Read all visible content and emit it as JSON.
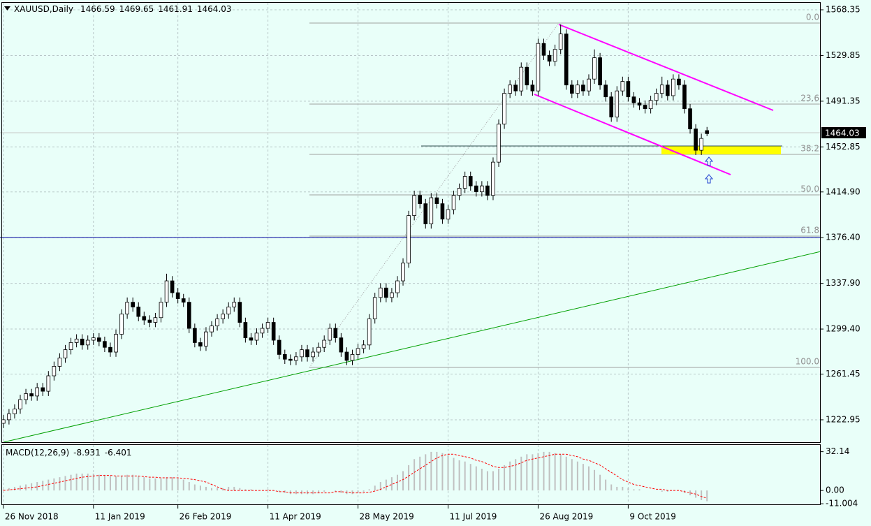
{
  "chart_data": [
    {
      "type": "candlestick",
      "title": "XAUUSD,Daily",
      "open": [
        1220,
        1223,
        1228,
        1232,
        1240,
        1245,
        1243,
        1250,
        1247,
        1260,
        1268,
        1275,
        1282,
        1288,
        1291,
        1286,
        1290,
        1292,
        1289,
        1284,
        1280,
        1295,
        1312,
        1322,
        1318,
        1310,
        1307,
        1305,
        1309,
        1322,
        1340,
        1330,
        1325,
        1322,
        1300,
        1288,
        1285,
        1297,
        1302,
        1308,
        1312,
        1318,
        1322,
        1305,
        1292,
        1290,
        1296,
        1300,
        1305,
        1290,
        1278,
        1274,
        1273,
        1276,
        1282,
        1276,
        1280,
        1284,
        1290,
        1300,
        1292,
        1280,
        1273,
        1278,
        1283,
        1286,
        1308,
        1326,
        1334,
        1326,
        1330,
        1340,
        1355,
        1395,
        1412,
        1405,
        1388,
        1410,
        1405,
        1392,
        1400,
        1412,
        1418,
        1428,
        1420,
        1415,
        1420,
        1412,
        1440,
        1472,
        1498,
        1505,
        1500,
        1520,
        1505,
        1500,
        1540,
        1530,
        1525,
        1535,
        1548,
        1505,
        1498,
        1505,
        1500,
        1510,
        1528,
        1505,
        1495,
        1478,
        1500,
        1508,
        1495,
        1490,
        1488,
        1485,
        1492,
        1498,
        1505,
        1496,
        1510,
        1505,
        1485,
        1468,
        1450,
        1466.59
      ],
      "high": [
        1227,
        1232,
        1236,
        1244,
        1249,
        1249,
        1254,
        1254,
        1264,
        1272,
        1279,
        1286,
        1292,
        1295,
        1295,
        1294,
        1296,
        1296,
        1293,
        1288,
        1299,
        1316,
        1326,
        1326,
        1322,
        1314,
        1311,
        1313,
        1326,
        1346,
        1344,
        1334,
        1329,
        1326,
        1304,
        1292,
        1301,
        1306,
        1312,
        1316,
        1322,
        1326,
        1326,
        1309,
        1296,
        1300,
        1304,
        1309,
        1309,
        1294,
        1282,
        1278,
        1280,
        1286,
        1286,
        1284,
        1288,
        1294,
        1304,
        1304,
        1296,
        1284,
        1282,
        1287,
        1290,
        1312,
        1330,
        1338,
        1338,
        1334,
        1344,
        1359,
        1399,
        1416,
        1416,
        1409,
        1414,
        1414,
        1409,
        1404,
        1416,
        1422,
        1432,
        1432,
        1424,
        1424,
        1424,
        1444,
        1476,
        1502,
        1509,
        1509,
        1524,
        1524,
        1509,
        1544,
        1544,
        1534,
        1539,
        1556,
        1552,
        1509,
        1509,
        1509,
        1514,
        1535,
        1532,
        1509,
        1499,
        1504,
        1512,
        1512,
        1499,
        1494,
        1492,
        1496,
        1502,
        1512,
        1509,
        1514,
        1514,
        1509,
        1489,
        1472,
        1464,
        1469.65
      ],
      "low": [
        1216,
        1219,
        1224,
        1228,
        1236,
        1239,
        1239,
        1243,
        1243,
        1256,
        1264,
        1271,
        1278,
        1284,
        1282,
        1282,
        1286,
        1285,
        1280,
        1276,
        1276,
        1291,
        1308,
        1314,
        1306,
        1303,
        1301,
        1301,
        1305,
        1318,
        1326,
        1321,
        1318,
        1296,
        1284,
        1281,
        1281,
        1293,
        1298,
        1304,
        1308,
        1314,
        1301,
        1288,
        1286,
        1286,
        1292,
        1296,
        1286,
        1274,
        1270,
        1269,
        1269,
        1272,
        1272,
        1272,
        1276,
        1280,
        1286,
        1288,
        1276,
        1269,
        1269,
        1274,
        1279,
        1282,
        1304,
        1322,
        1322,
        1322,
        1326,
        1336,
        1351,
        1391,
        1401,
        1384,
        1384,
        1401,
        1388,
        1388,
        1396,
        1408,
        1414,
        1416,
        1411,
        1411,
        1408,
        1408,
        1436,
        1468,
        1494,
        1496,
        1496,
        1501,
        1496,
        1496,
        1526,
        1521,
        1521,
        1531,
        1501,
        1494,
        1494,
        1496,
        1496,
        1506,
        1501,
        1491,
        1474,
        1474,
        1496,
        1491,
        1486,
        1484,
        1481,
        1481,
        1488,
        1494,
        1492,
        1492,
        1501,
        1481,
        1464,
        1446,
        1446,
        1461.91
      ],
      "close": [
        1223,
        1228,
        1232,
        1240,
        1245,
        1243,
        1250,
        1247,
        1260,
        1268,
        1275,
        1282,
        1288,
        1291,
        1286,
        1290,
        1292,
        1289,
        1284,
        1280,
        1295,
        1312,
        1322,
        1318,
        1310,
        1307,
        1305,
        1309,
        1322,
        1340,
        1330,
        1325,
        1322,
        1300,
        1288,
        1285,
        1297,
        1302,
        1308,
        1312,
        1318,
        1322,
        1305,
        1292,
        1290,
        1296,
        1300,
        1305,
        1290,
        1278,
        1274,
        1273,
        1276,
        1282,
        1276,
        1280,
        1284,
        1290,
        1300,
        1292,
        1280,
        1273,
        1278,
        1283,
        1286,
        1308,
        1326,
        1334,
        1326,
        1330,
        1340,
        1355,
        1395,
        1412,
        1405,
        1388,
        1410,
        1405,
        1392,
        1400,
        1412,
        1418,
        1428,
        1420,
        1415,
        1420,
        1412,
        1440,
        1472,
        1498,
        1505,
        1500,
        1520,
        1505,
        1500,
        1540,
        1530,
        1525,
        1535,
        1548,
        1505,
        1498,
        1505,
        1500,
        1510,
        1528,
        1505,
        1495,
        1478,
        1500,
        1508,
        1495,
        1490,
        1488,
        1485,
        1492,
        1498,
        1505,
        1496,
        1510,
        1505,
        1485,
        1468,
        1450,
        1460,
        1464.03
      ],
      "up_color": "#ffffff",
      "down_color": "#000000",
      "xlim": [
        -0.6,
        145.2
      ],
      "xticks": [
        {
          "value": 0,
          "label": "26 Nov 2018"
        },
        {
          "value": 16,
          "label": "11 Jan 2019"
        },
        {
          "value": 31,
          "label": "26 Feb 2019"
        },
        {
          "value": 47,
          "label": "11 Apr 2019"
        },
        {
          "value": 63,
          "label": "28 May 2019"
        },
        {
          "value": 79,
          "label": "11 Jul 2019"
        },
        {
          "value": 95,
          "label": "26 Aug 2019"
        },
        {
          "value": 111,
          "label": "9 Oct 2019"
        }
      ],
      "ylim": [
        1204.1,
        1576.6
      ],
      "yticks": [
        1568.35,
        1529.85,
        1491.35,
        1452.85,
        {
          "value": 1414.9,
          "label": "1414.90"
        },
        {
          "value": 1376.4,
          "label": "1376.40"
        },
        {
          "value": 1337.9,
          "label": "1337.90"
        },
        {
          "value": 1299.4,
          "label": "1299.40"
        },
        1261.45,
        1222.95
      ],
      "grid": true,
      "fib_levels": [
        "0.0",
        "23.6",
        "38.2",
        "50.0",
        "61.8",
        "100.0"
      ]
    },
    {
      "type": "macd",
      "title": "MACD(12,26,9)",
      "macd": [
        1,
        2,
        3,
        4,
        5,
        6,
        7,
        8,
        9,
        10,
        11,
        12,
        13,
        14,
        14,
        14,
        14,
        13,
        13,
        12,
        12,
        12,
        13,
        13,
        12,
        11,
        10,
        10,
        10,
        11,
        11,
        10,
        9,
        7,
        5,
        4,
        3,
        2,
        2,
        2,
        3,
        3,
        2,
        1,
        1,
        0,
        0,
        1,
        0,
        -1,
        -2,
        -3,
        -3,
        -3,
        -3,
        -3,
        -2,
        -1,
        0,
        -1,
        -2,
        -3,
        -3,
        -2,
        -1,
        1,
        4,
        7,
        9,
        11,
        13,
        16,
        21,
        26,
        28,
        30,
        32,
        32,
        31,
        29,
        27,
        25,
        24,
        22,
        20,
        18,
        16,
        16,
        18,
        21,
        24,
        26,
        28,
        30,
        30,
        31,
        32,
        32,
        31,
        30,
        28,
        26,
        24,
        22,
        20,
        17,
        13,
        9,
        5,
        3,
        3,
        2,
        1,
        1,
        0,
        0,
        0,
        -1,
        -1,
        0,
        0,
        -2,
        -4,
        -6,
        -8,
        -8.931
      ],
      "signal": [
        0,
        0.5,
        1,
        1.5,
        2,
        2.5,
        3,
        4,
        5,
        6,
        7,
        8,
        9,
        10,
        11,
        11.5,
        12,
        12.5,
        12.5,
        12.5,
        12,
        12,
        12,
        12,
        12,
        11.5,
        11,
        11,
        10.5,
        10.5,
        10.5,
        10.5,
        10,
        9.5,
        9,
        8,
        7,
        5,
        3,
        1,
        0,
        0,
        0,
        0,
        0,
        0,
        0,
        0,
        0,
        -1,
        -1,
        -2,
        -2,
        -2,
        -2,
        -2,
        -2,
        -2,
        -2,
        -1,
        -1,
        -1.5,
        -2,
        -2,
        -2,
        -1.5,
        -0.5,
        1,
        3,
        5,
        7,
        9,
        12,
        15,
        18,
        21,
        24,
        27,
        29,
        30,
        30,
        29,
        28,
        27,
        25,
        24,
        22,
        20,
        19,
        19,
        20,
        21,
        23,
        25,
        26,
        27,
        28,
        29,
        30,
        30,
        30,
        29,
        28,
        26,
        25,
        23,
        21,
        18,
        15,
        12,
        9,
        7,
        5,
        4,
        3,
        2,
        1,
        1,
        0,
        0,
        0,
        -1,
        -2,
        -3,
        -5,
        -6.401
      ],
      "macd_color": "#c0c0c0",
      "signal_color": "#ff0000",
      "ylim": [
        -11.5,
        38.3
      ],
      "yticks": [
        32.14,
        {
          "value": 0,
          "label": "0.00"
        },
        -11.004
      ]
    }
  ]
}
